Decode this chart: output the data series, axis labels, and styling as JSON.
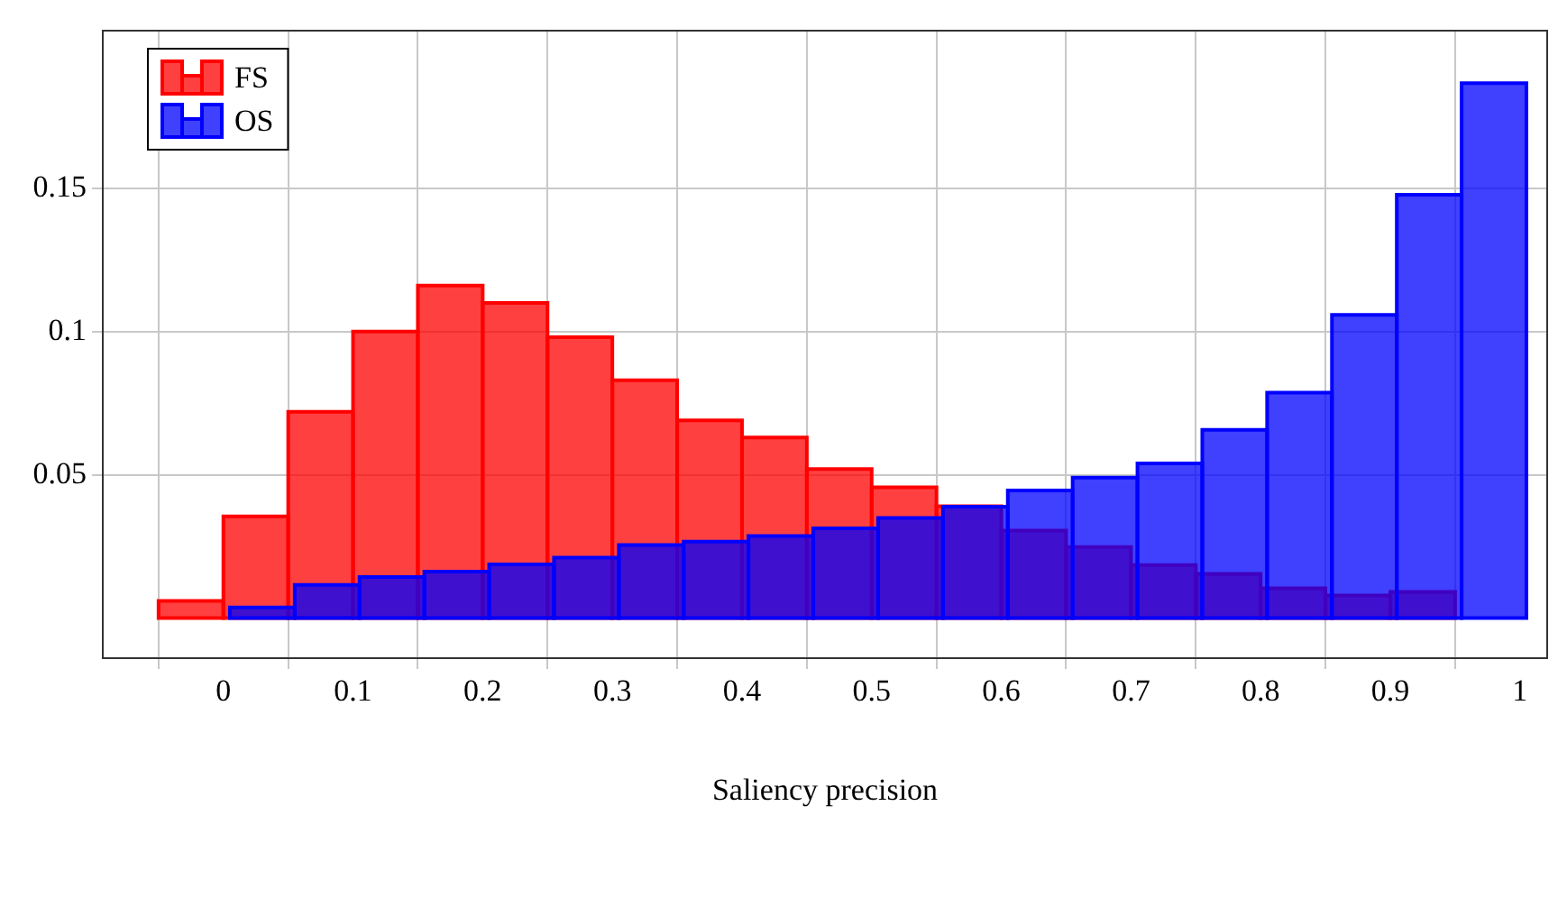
{
  "chart_data": {
    "type": "histogram",
    "xlabel": "Saliency precision",
    "bins": [
      -0.05,
      0,
      0.05,
      0.1,
      0.15,
      0.2,
      0.25,
      0.3,
      0.35,
      0.4,
      0.45,
      0.5,
      0.55,
      0.6,
      0.65,
      0.7,
      0.75,
      0.8,
      0.85,
      0.9,
      0.95
    ],
    "series": [
      {
        "name": "FS",
        "color": "#ff0000",
        "values": [
          0.006,
          0.0355,
          0.072,
          0.1,
          0.116,
          0.11,
          0.098,
          0.083,
          0.069,
          0.063,
          0.052,
          0.0456,
          0.039,
          0.0305,
          0.0248,
          0.0185,
          0.0154,
          0.0104,
          0.0079,
          0.0091
        ]
      },
      {
        "name": "OS",
        "color": "#0000ff",
        "bins": [
          0.005,
          0.055,
          0.105,
          0.155,
          0.205,
          0.255,
          0.305,
          0.355,
          0.405,
          0.455,
          0.505,
          0.555,
          0.605,
          0.655,
          0.705,
          0.755,
          0.805,
          0.855,
          0.905,
          0.955,
          1.005
        ],
        "values": [
          0.0037,
          0.0116,
          0.0143,
          0.0162,
          0.0187,
          0.0211,
          0.0255,
          0.0267,
          0.0286,
          0.0313,
          0.0349,
          0.0389,
          0.0445,
          0.049,
          0.054,
          0.0657,
          0.0787,
          0.1058,
          0.1477,
          0.1867
        ]
      }
    ],
    "xlim": [
      -0.093,
      1.021
    ],
    "xticks": [
      0,
      0.1,
      0.2,
      0.3,
      0.4,
      0.5,
      0.6,
      0.7,
      0.8,
      0.9,
      1
    ],
    "ylim": [
      -0.014,
      0.205
    ],
    "yticks": [
      0.05,
      0.1,
      0.15
    ],
    "grid": true,
    "legend": "top left"
  }
}
